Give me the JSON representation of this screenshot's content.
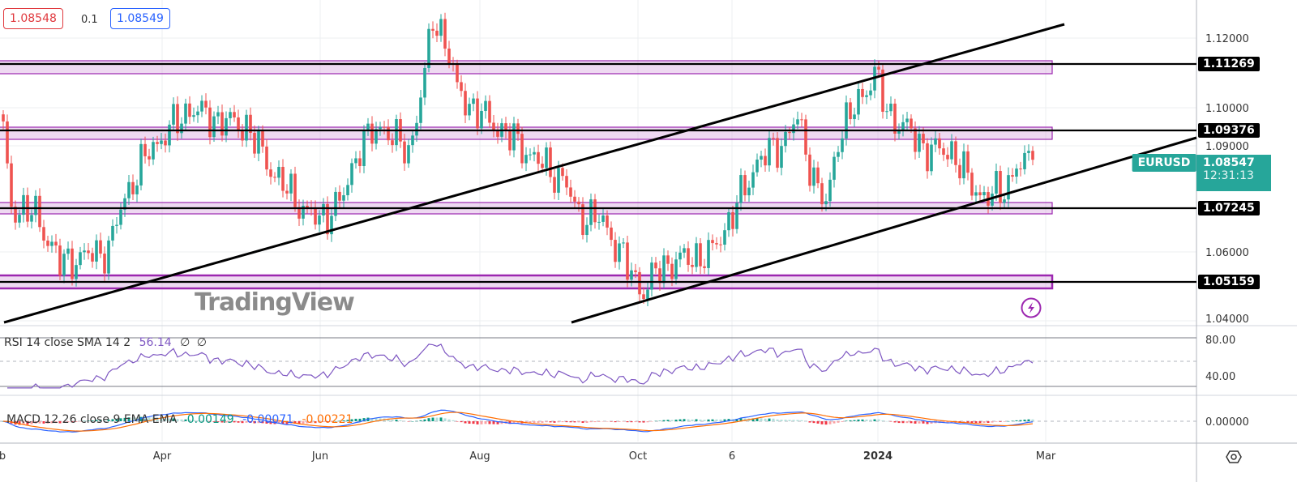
{
  "top_bar": {
    "bid": "1.08548",
    "spread": "0.1",
    "ask": "1.08549",
    "bid_color": "#e0393e",
    "ask_color": "#2962ff"
  },
  "symbol": {
    "name": "EURUSD",
    "last_price": "1.08547",
    "countdown": "12:31:13",
    "color": "#26a69a"
  },
  "chart_data": {
    "type": "candlestick",
    "symbol": "EURUSD",
    "price_axis": {
      "ticks": [
        "1.12000",
        "1.10000",
        "1.09000",
        "1.06000",
        "1.04000"
      ],
      "ylim": [
        1.04,
        1.13
      ]
    },
    "time_axis": {
      "ticks": [
        "b",
        "Apr",
        "Jun",
        "Aug",
        "Oct",
        "6",
        "2024",
        "Mar"
      ]
    },
    "close_anchors": [
      [
        0,
        1.093
      ],
      [
        2,
        1.072
      ],
      [
        8,
        1.07
      ],
      [
        14,
        1.056
      ],
      [
        20,
        1.058
      ],
      [
        26,
        1.06
      ],
      [
        30,
        1.075
      ],
      [
        36,
        1.088
      ],
      [
        46,
        1.1
      ],
      [
        52,
        1.097
      ],
      [
        60,
        1.095
      ],
      [
        66,
        1.083
      ],
      [
        72,
        1.074
      ],
      [
        78,
        1.068
      ],
      [
        84,
        1.075
      ],
      [
        88,
        1.09
      ],
      [
        94,
        1.095
      ],
      [
        100,
        1.087
      ],
      [
        104,
        1.11
      ],
      [
        106,
        1.125
      ],
      [
        109,
        1.12
      ],
      [
        112,
        1.105
      ],
      [
        116,
        1.1
      ],
      [
        124,
        1.093
      ],
      [
        132,
        1.085
      ],
      [
        138,
        1.08
      ],
      [
        142,
        1.07
      ],
      [
        148,
        1.068
      ],
      [
        154,
        1.055
      ],
      [
        158,
        1.048
      ],
      [
        162,
        1.055
      ],
      [
        170,
        1.058
      ],
      [
        174,
        1.058
      ],
      [
        180,
        1.07
      ],
      [
        186,
        1.085
      ],
      [
        192,
        1.09
      ],
      [
        196,
        1.097
      ],
      [
        200,
        1.08
      ],
      [
        203,
        1.072
      ],
      [
        206,
        1.092
      ],
      [
        210,
        1.1
      ],
      [
        215,
        1.11
      ],
      [
        218,
        1.099
      ],
      [
        224,
        1.093
      ],
      [
        228,
        1.088
      ],
      [
        234,
        1.088
      ],
      [
        239,
        1.078
      ],
      [
        242,
        1.075
      ],
      [
        246,
        1.076
      ],
      [
        250,
        1.083
      ],
      [
        254,
        1.0855
      ]
    ],
    "levels": [
      {
        "label": "1.11269",
        "price": 1.11269
      },
      {
        "label": "1.09376",
        "price": 1.09376
      },
      {
        "label": "1.07245",
        "price": 1.07245
      },
      {
        "label": "1.05159",
        "price": 1.05159
      }
    ],
    "rsi": {
      "legend": "RSI 14 close SMA 14 2",
      "value": "56.14",
      "extra1": "∅",
      "extra2": "∅",
      "ticks": [
        "80.00",
        "40.00"
      ],
      "color": "#7e57c2"
    },
    "macd": {
      "legend": "MACD 12 26 close 9 EMA EMA",
      "hist": "0.00149",
      "macd": "-0.00071",
      "signal": "-0.00221",
      "ticks": [
        "0.00000"
      ],
      "hist_color": "#089981",
      "macd_color": "#2962ff",
      "signal_color": "#ff6d00"
    }
  },
  "watermark": "TradingView"
}
